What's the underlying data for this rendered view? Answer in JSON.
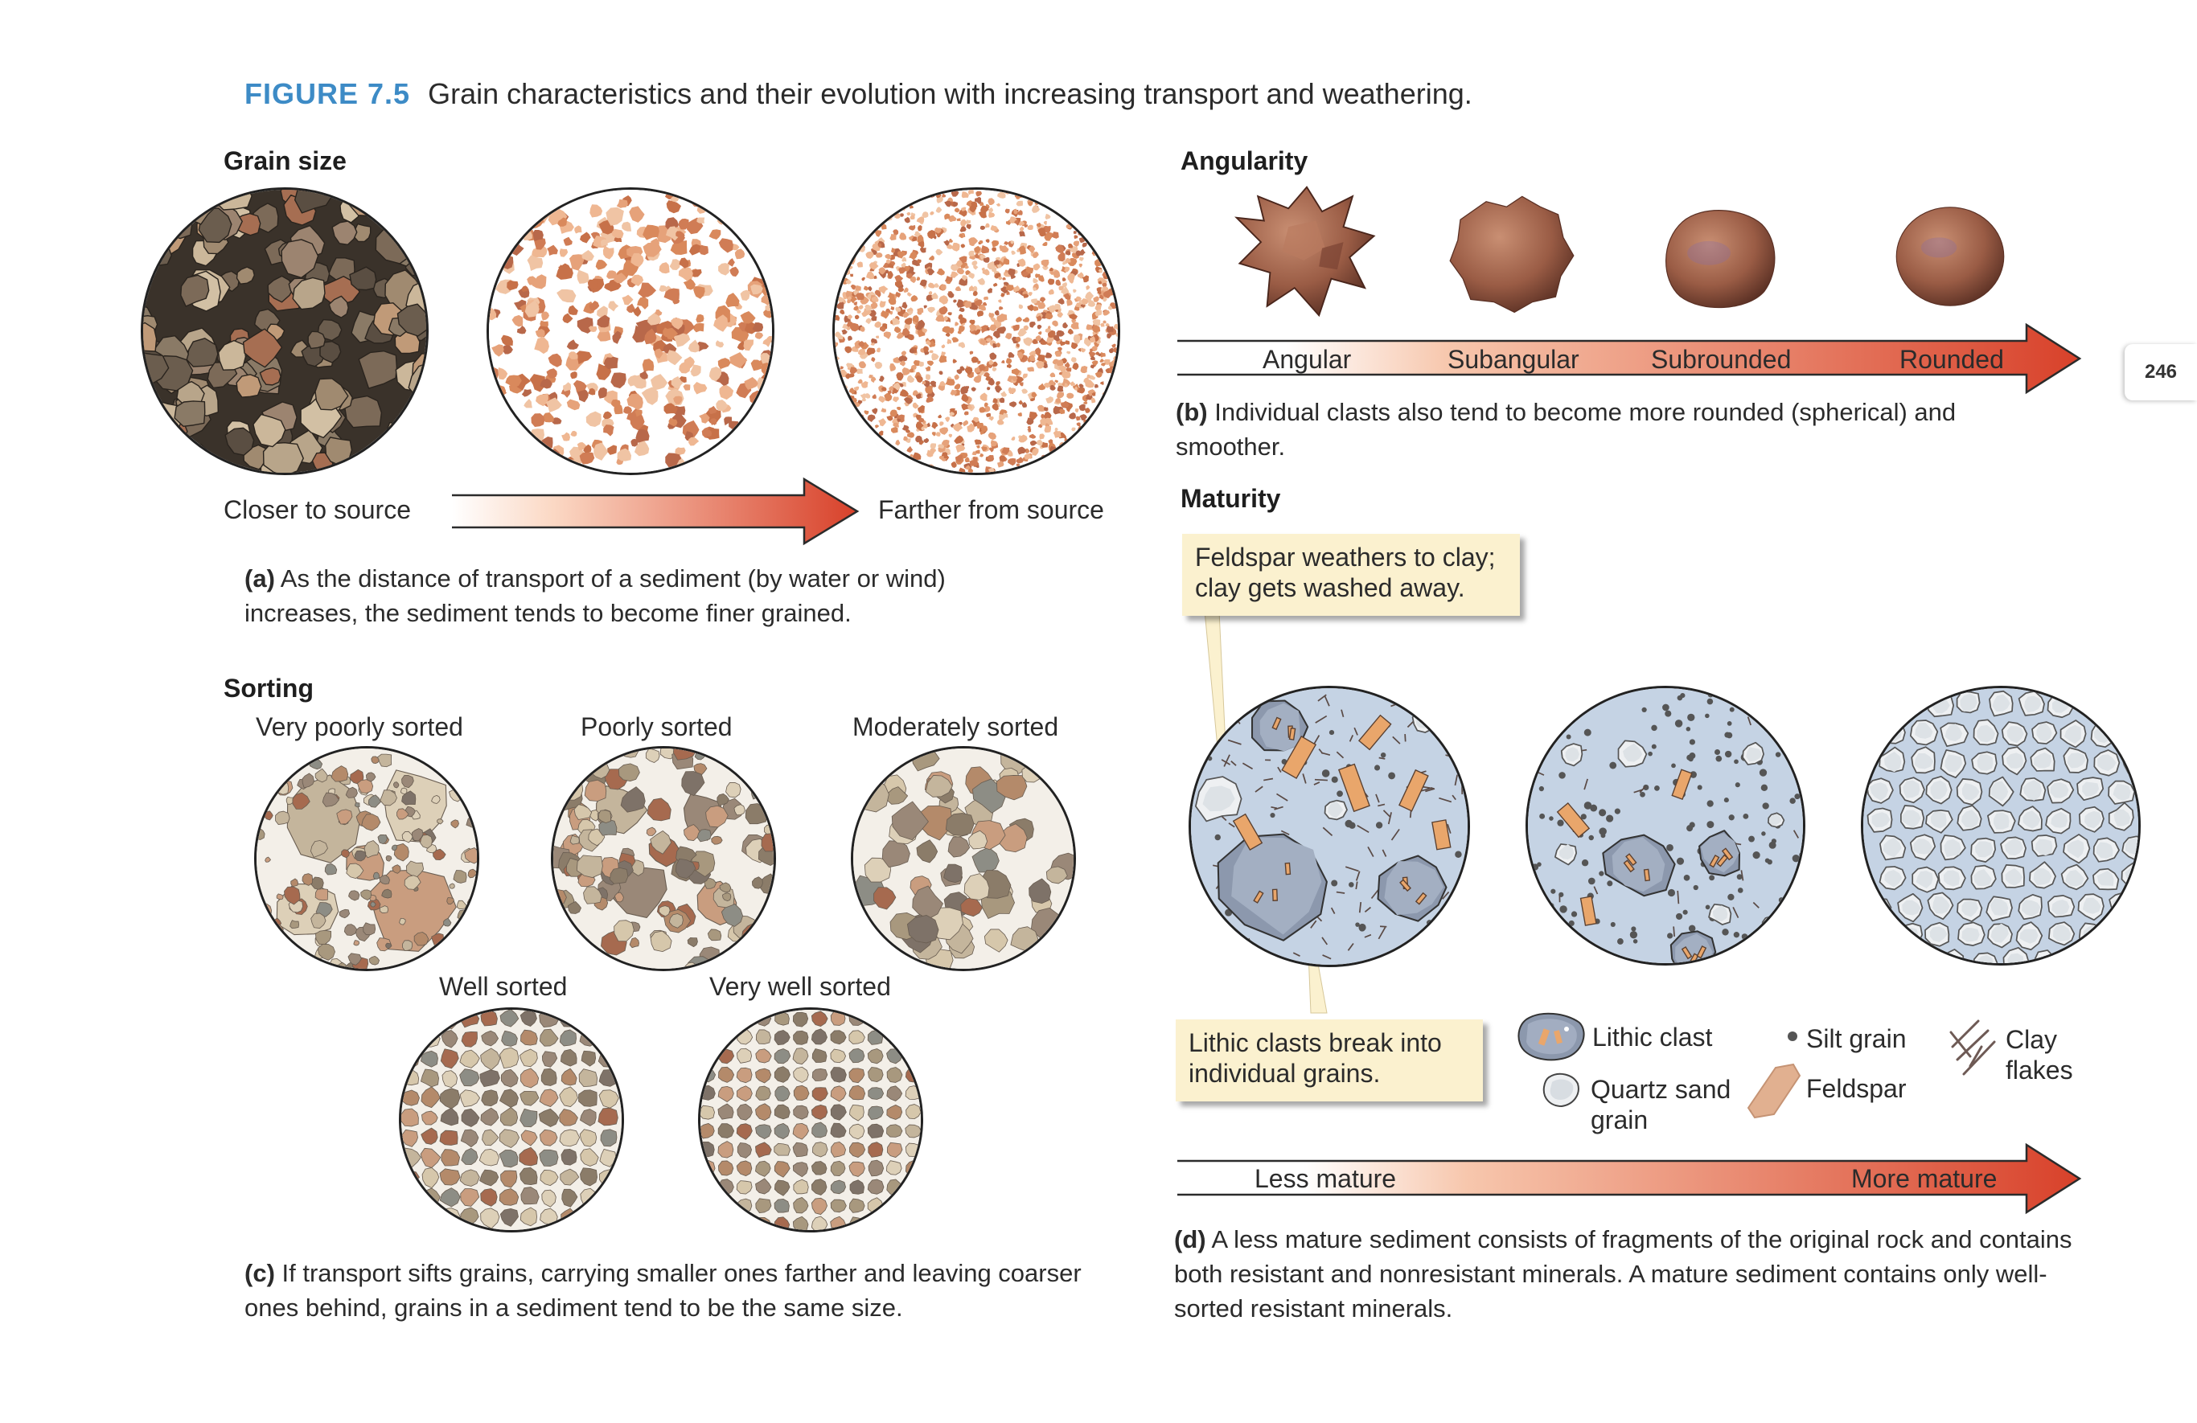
{
  "figure": {
    "number": "FIGURE 7.5",
    "title": "Grain characteristics and their evolution with increasing transport and weathering."
  },
  "page_number": "246",
  "grain_size": {
    "heading": "Grain size",
    "left_label": "Closer to source",
    "right_label": "Farther from source",
    "caption_letter": "(a)",
    "caption_text": "As the distance of transport of a sediment (by water or wind) increases, the sediment tends to become finer grained."
  },
  "angularity": {
    "heading": "Angularity",
    "labels": [
      "Angular",
      "Subangular",
      "Subrounded",
      "Rounded"
    ],
    "caption_letter": "(b)",
    "caption_text": "Individual clasts also tend to become more rounded (spherical) and smoother."
  },
  "sorting": {
    "heading": "Sorting",
    "labels": [
      "Very poorly sorted",
      "Poorly sorted",
      "Moderately sorted",
      "Well sorted",
      "Very well sorted"
    ],
    "caption_letter": "(c)",
    "caption_text": "If transport sifts grains, carrying smaller ones farther and leaving coarser ones behind, grains in a sediment tend to be the same size."
  },
  "maturity": {
    "heading": "Maturity",
    "callout_top": "Feldspar weathers to clay; clay gets washed away.",
    "callout_bottom": "Lithic clasts break into individual grains.",
    "legend": {
      "lithic": "Lithic clast",
      "quartz": "Quartz sand grain",
      "silt": "Silt grain",
      "feldspar": "Feldspar",
      "clay": "Clay flakes"
    },
    "arrow_left": "Less mature",
    "arrow_right": "More mature",
    "caption_letter": "(d)",
    "caption_text": "A less mature sediment consists of fragments of the original rock and contains both resistant and nonresistant minerals. A mature sediment contains only well-sorted resistant minerals."
  },
  "colors": {
    "accent_blue": "#3d8bc6",
    "arrow_red": "#d8412a",
    "callout_bg": "#fbf1cf"
  }
}
